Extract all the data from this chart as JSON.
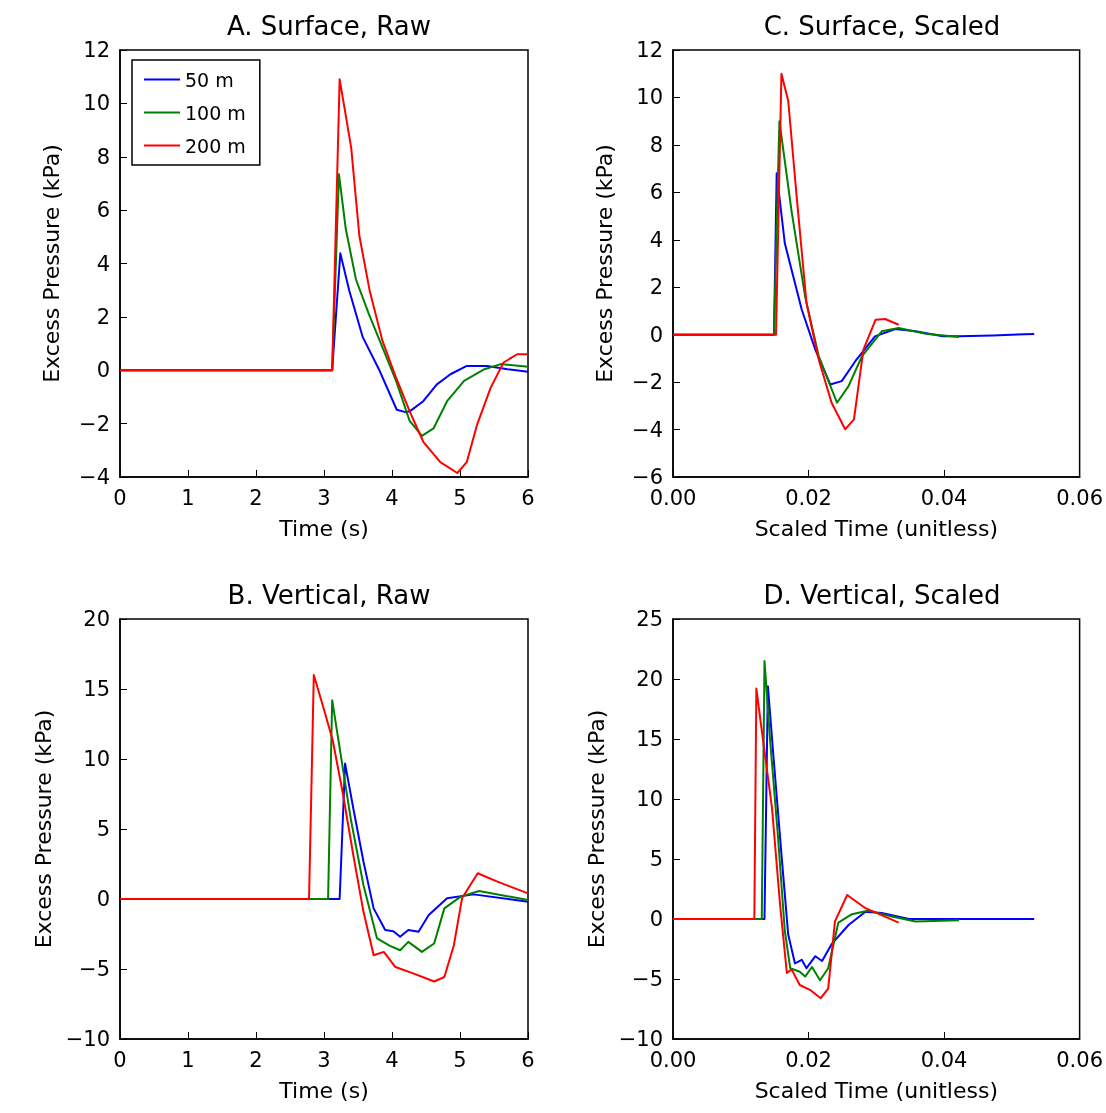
{
  "chart_data": [
    {
      "type": "line",
      "title": "A. Surface, Raw",
      "xlabel": "Time (s)",
      "ylabel": "Excess Pressure (kPa)",
      "xlim": [
        0,
        6
      ],
      "xticks": [
        0,
        1,
        2,
        3,
        4,
        5,
        6
      ],
      "ylim": [
        -4,
        12
      ],
      "yticks": [
        {
          "value": -4,
          "label": "−4"
        },
        {
          "value": -2,
          "label": "−2"
        },
        0,
        2,
        4,
        6,
        8,
        10,
        12
      ],
      "legend": "top left",
      "marker": "none",
      "series": [
        {
          "name": "50 m",
          "color": "#0000ff",
          "x": [
            0,
            3.12,
            3.24,
            3.37,
            3.57,
            3.82,
            4.07,
            4.2,
            4.26,
            4.46,
            4.66,
            4.86,
            5.1,
            5.4,
            5.7,
            6
          ],
          "values": [
            0,
            0,
            4.38,
            3.0,
            1.24,
            -0.03,
            -1.48,
            -1.57,
            -1.54,
            -1.16,
            -0.53,
            -0.15,
            0.16,
            0.16,
            0.04,
            -0.06
          ]
        },
        {
          "name": "100 m",
          "color": "#008000",
          "x": [
            0,
            3.12,
            3.22,
            3.32,
            3.47,
            3.66,
            3.86,
            4.06,
            4.26,
            4.44,
            4.61,
            4.81,
            5.06,
            5.36,
            5.6,
            6
          ],
          "values": [
            0,
            0,
            7.34,
            5.3,
            3.4,
            2.1,
            0.86,
            -0.4,
            -1.9,
            -2.46,
            -2.18,
            -1.16,
            -0.4,
            0.04,
            0.23,
            0.13
          ]
        },
        {
          "name": "200 m",
          "color": "#ff0000",
          "x": [
            0,
            3.12,
            3.23,
            3.3,
            3.4,
            3.52,
            3.67,
            3.86,
            4.06,
            4.26,
            4.46,
            4.71,
            4.96,
            5.1,
            5.25,
            5.45,
            5.64,
            5.84,
            6
          ],
          "values": [
            0,
            0,
            10.9,
            9.85,
            8.33,
            5.04,
            3.0,
            1.1,
            -0.28,
            -1.54,
            -2.68,
            -3.44,
            -3.85,
            -3.44,
            -2.05,
            -0.66,
            0.29,
            0.6,
            0.6
          ]
        }
      ]
    },
    {
      "type": "line",
      "title": "C. Surface, Scaled",
      "xlabel": "Scaled Time (unitless)",
      "ylabel": "Excess Pressure (kPa)",
      "xlim": [
        0,
        0.06
      ],
      "xticks": [
        {
          "value": 0,
          "label": "0.00"
        },
        {
          "value": 0.02,
          "label": "0.02"
        },
        {
          "value": 0.04,
          "label": "0.04"
        },
        {
          "value": 0.06,
          "label": "0.06"
        }
      ],
      "ylim": [
        -6,
        12
      ],
      "yticks": [
        {
          "value": -6,
          "label": "−6"
        },
        {
          "value": -4,
          "label": "−4"
        },
        {
          "value": -2,
          "label": "−2"
        },
        0,
        2,
        4,
        6,
        8,
        10,
        12
      ],
      "marker": "none",
      "series": [
        {
          "color": "#0000ff",
          "x": [
            0,
            0.0149,
            0.0153,
            0.0165,
            0.019,
            0.021,
            0.0232,
            0.0249,
            0.0269,
            0.0298,
            0.0328,
            0.0358,
            0.0398,
            0.0422,
            0.0472,
            0.0533
          ],
          "values": [
            0,
            0,
            6.8,
            3.85,
            1.05,
            -0.63,
            -2.1,
            -1.96,
            -1.12,
            -0.07,
            0.24,
            0.14,
            -0.07,
            -0.07,
            -0.03,
            0.03
          ]
        },
        {
          "color": "#008000",
          "x": [
            0,
            0.0149,
            0.0157,
            0.0175,
            0.0195,
            0.0215,
            0.0242,
            0.0259,
            0.0279,
            0.0308,
            0.0333,
            0.0373,
            0.0422
          ],
          "values": [
            0,
            0,
            9.0,
            5.2,
            1.6,
            -0.9,
            -2.87,
            -2.17,
            -0.9,
            0.14,
            0.28,
            0.04,
            -0.1
          ]
        },
        {
          "color": "#ff0000",
          "x": [
            0,
            0.0152,
            0.016,
            0.017,
            0.0183,
            0.0197,
            0.0215,
            0.0234,
            0.0254,
            0.0267,
            0.0281,
            0.0299,
            0.0313,
            0.0333
          ],
          "values": [
            0,
            0,
            11.0,
            9.86,
            5.66,
            1.33,
            -1.05,
            -2.87,
            -3.99,
            -3.57,
            -0.63,
            0.63,
            0.66,
            0.42
          ]
        }
      ]
    },
    {
      "type": "line",
      "title": "B. Vertical, Raw",
      "xlabel": "Time (s)",
      "ylabel": "Excess Pressure (kPa)",
      "xlim": [
        0,
        6
      ],
      "xticks": [
        0,
        1,
        2,
        3,
        4,
        5,
        6
      ],
      "ylim": [
        -10,
        20
      ],
      "yticks": [
        {
          "value": -10,
          "label": "−10"
        },
        {
          "value": -5,
          "label": "−5"
        },
        0,
        5,
        10,
        15,
        20
      ],
      "marker": "none",
      "series": [
        {
          "color": "#0000ff",
          "x": [
            0,
            3.23,
            3.31,
            3.43,
            3.58,
            3.73,
            3.9,
            4.02,
            4.12,
            4.24,
            4.39,
            4.54,
            4.81,
            5.2,
            6
          ],
          "values": [
            0,
            0,
            9.67,
            6.5,
            2.68,
            -0.67,
            -2.22,
            -2.3,
            -2.7,
            -2.22,
            -2.34,
            -1.15,
            0.05,
            0.33,
            -0.19
          ]
        },
        {
          "color": "#008000",
          "x": [
            0,
            3.06,
            3.12,
            3.26,
            3.4,
            3.58,
            3.78,
            3.97,
            4.12,
            4.24,
            4.44,
            4.62,
            4.77,
            5.01,
            5.28,
            6
          ],
          "values": [
            0,
            0,
            14.2,
            9.86,
            5.55,
            1.0,
            -2.82,
            -3.35,
            -3.66,
            -3.06,
            -3.78,
            -3.18,
            -0.67,
            0.17,
            0.57,
            -0.07
          ]
        },
        {
          "color": "#ff0000",
          "x": [
            0,
            2.78,
            2.85,
            2.99,
            3.13,
            3.28,
            3.43,
            3.58,
            3.73,
            3.88,
            4.05,
            4.32,
            4.62,
            4.77,
            4.91,
            5.03,
            5.26,
            5.55,
            6
          ],
          "values": [
            0,
            0,
            16.0,
            13.7,
            11.3,
            7.46,
            3.16,
            -0.9,
            -4.02,
            -3.78,
            -4.86,
            -5.33,
            -5.89,
            -5.57,
            -3.3,
            0.05,
            1.84,
            1.24,
            0.4
          ]
        }
      ]
    },
    {
      "type": "line",
      "title": "D. Vertical, Scaled",
      "xlabel": "Scaled Time (unitless)",
      "ylabel": "Excess Pressure (kPa)",
      "xlim": [
        0,
        0.06
      ],
      "xticks": [
        {
          "value": 0,
          "label": "0.00"
        },
        {
          "value": 0.02,
          "label": "0.02"
        },
        {
          "value": 0.04,
          "label": "0.04"
        },
        {
          "value": 0.06,
          "label": "0.06"
        }
      ],
      "ylim": [
        -10,
        25
      ],
      "yticks": [
        {
          "value": -10,
          "label": "−10"
        },
        {
          "value": -5,
          "label": "−5"
        },
        0,
        5,
        10,
        15,
        20,
        25
      ],
      "marker": "none",
      "series": [
        {
          "color": "#0000ff",
          "x": [
            0,
            0.0135,
            0.014,
            0.0148,
            0.016,
            0.017,
            0.018,
            0.019,
            0.0197,
            0.021,
            0.022,
            0.0234,
            0.0259,
            0.0284,
            0.0308,
            0.0348,
            0.0533
          ],
          "values": [
            0,
            0,
            19.4,
            13.7,
            5.4,
            -1.3,
            -3.7,
            -3.4,
            -4.1,
            -3.1,
            -3.5,
            -2.1,
            -0.5,
            0.6,
            0.5,
            0,
            0
          ]
        },
        {
          "color": "#008000",
          "x": [
            0,
            0.0131,
            0.0135,
            0.0143,
            0.0155,
            0.0165,
            0.0173,
            0.0187,
            0.0195,
            0.0205,
            0.0217,
            0.0229,
            0.0244,
            0.0264,
            0.0289,
            0.0323,
            0.0358,
            0.0422
          ],
          "values": [
            0,
            0,
            21.5,
            15.1,
            6.8,
            -1.0,
            -4.1,
            -4.4,
            -4.8,
            -4.0,
            -5.1,
            -4.1,
            -0.3,
            0.4,
            0.7,
            0.2,
            -0.2,
            -0.1
          ]
        },
        {
          "color": "#ff0000",
          "x": [
            0,
            0.012,
            0.0123,
            0.0131,
            0.0146,
            0.0158,
            0.0168,
            0.0175,
            0.0187,
            0.0202,
            0.0218,
            0.0229,
            0.0239,
            0.0257,
            0.0284,
            0.0333
          ],
          "values": [
            0,
            0,
            19.2,
            15.7,
            9.3,
            1.2,
            -4.5,
            -4.2,
            -5.5,
            -5.9,
            -6.6,
            -5.8,
            -0.2,
            2.0,
            0.9,
            -0.3
          ]
        }
      ]
    }
  ]
}
